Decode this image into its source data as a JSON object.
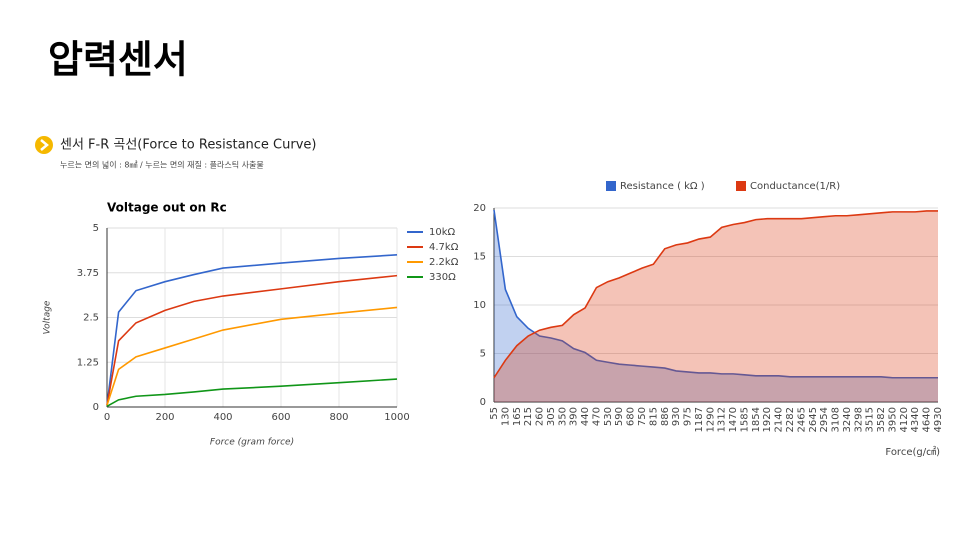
{
  "slide": {
    "title": "압력센서",
    "heading": "센서 F-R 곡선(Force to Resistance Curve)",
    "note": "누르는 면의 넓이 : 8㎟  /  누르는 면의 재질 : 플라스틱 사출물"
  },
  "chart_data": [
    {
      "type": "line",
      "title": "Voltage out on Rc",
      "x_label": "Force (gram force)",
      "y_label": "Voltage",
      "x": [
        0,
        40,
        100,
        200,
        300,
        400,
        600,
        800,
        1000
      ],
      "series": [
        {
          "name": "10kΩ",
          "color": "#3366cc",
          "values": [
            0.05,
            2.65,
            3.25,
            3.5,
            3.7,
            3.88,
            4.02,
            4.15,
            4.25
          ]
        },
        {
          "name": "4.7kΩ",
          "color": "#dc3912",
          "values": [
            0.05,
            1.85,
            2.35,
            2.7,
            2.95,
            3.1,
            3.3,
            3.5,
            3.67
          ]
        },
        {
          "name": "2.2kΩ",
          "color": "#ff9900",
          "values": [
            0.05,
            1.05,
            1.4,
            1.65,
            1.9,
            2.15,
            2.45,
            2.62,
            2.78
          ]
        },
        {
          "name": "330Ω",
          "color": "#109618",
          "values": [
            0.02,
            0.2,
            0.3,
            0.35,
            0.42,
            0.5,
            0.58,
            0.68,
            0.78
          ]
        }
      ],
      "xlim": [
        0,
        1000
      ],
      "xticks": [
        0,
        200,
        400,
        600,
        800,
        1000
      ],
      "ylim": [
        0,
        5
      ],
      "yticks": [
        0,
        1.25,
        2.5,
        3.75,
        5
      ],
      "grid": true,
      "legend": "right"
    },
    {
      "type": "area",
      "x_label": "Force(g/㎠)",
      "categories": [
        "55",
        "130",
        "165",
        "215",
        "260",
        "305",
        "350",
        "390",
        "440",
        "470",
        "530",
        "590",
        "680",
        "750",
        "815",
        "886",
        "930",
        "975",
        "1187",
        "1290",
        "1312",
        "1470",
        "1585",
        "1854",
        "1920",
        "2140",
        "2282",
        "2465",
        "2645",
        "2954",
        "3108",
        "3240",
        "3298",
        "3515",
        "3582",
        "3950",
        "4120",
        "4340",
        "4640",
        "4930"
      ],
      "series": [
        {
          "name": "Resistance ( kΩ )",
          "color": "#3366cc",
          "values": [
            19.8,
            11.6,
            8.8,
            7.6,
            6.8,
            6.6,
            6.3,
            5.5,
            5.1,
            4.3,
            4.1,
            3.9,
            3.8,
            3.7,
            3.6,
            3.5,
            3.2,
            3.1,
            3.0,
            3.0,
            2.9,
            2.9,
            2.8,
            2.7,
            2.7,
            2.7,
            2.6,
            2.6,
            2.6,
            2.6,
            2.6,
            2.6,
            2.6,
            2.6,
            2.6,
            2.5,
            2.5,
            2.5,
            2.5,
            2.5
          ]
        },
        {
          "name": "Conductance(1/R)",
          "color": "#dc3912",
          "values": [
            2.5,
            4.3,
            5.8,
            6.8,
            7.4,
            7.7,
            7.9,
            9.0,
            9.7,
            11.8,
            12.4,
            12.8,
            13.3,
            13.8,
            14.2,
            15.8,
            16.2,
            16.4,
            16.8,
            17.0,
            18.0,
            18.3,
            18.5,
            18.8,
            18.9,
            18.9,
            18.9,
            18.9,
            19.0,
            19.1,
            19.2,
            19.2,
            19.3,
            19.4,
            19.5,
            19.6,
            19.6,
            19.6,
            19.7,
            19.7
          ]
        }
      ],
      "ylim": [
        0,
        20
      ],
      "yticks": [
        0,
        5,
        10,
        15,
        20
      ],
      "grid": true,
      "legend": "top"
    }
  ]
}
